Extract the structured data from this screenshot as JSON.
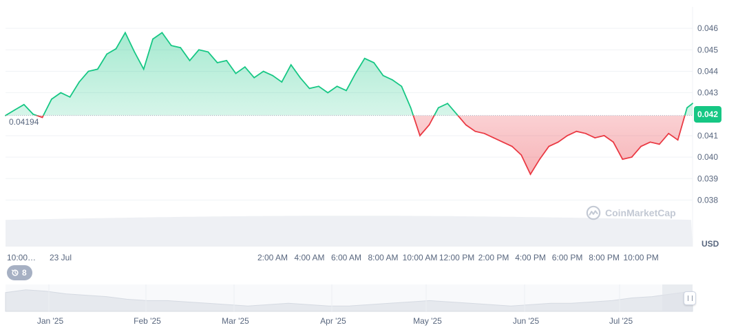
{
  "chart_data": {
    "type": "area",
    "reference_price": 0.04194,
    "reference_price_label": "0.04194",
    "current_price_label": "0.042",
    "currency": "USD",
    "ylim": [
      0.0375,
      0.047
    ],
    "y_ticks": [
      "0.046",
      "0.045",
      "0.044",
      "0.043",
      "0.041",
      "0.040",
      "0.039",
      "0.038"
    ],
    "y_tick_values": [
      0.046,
      0.045,
      0.044,
      0.043,
      0.041,
      0.04,
      0.039,
      0.038
    ],
    "x_labels": [
      "10:00…",
      "23 Jul",
      "2:00 AM",
      "4:00 AM",
      "6:00 AM",
      "8:00 AM",
      "10:00 AM",
      "12:00 PM",
      "2:00 PM",
      "4:00 PM",
      "6:00 PM",
      "8:00 PM",
      "10:00 PM"
    ],
    "x_label_hours": [
      -14,
      -10,
      2,
      4,
      6,
      8,
      10,
      12,
      14,
      16,
      18,
      20,
      22
    ],
    "x_range_hours": [
      -12.5,
      24.8
    ],
    "series": [
      {
        "x": [
          -12.5,
          -12,
          -11.5,
          -11,
          -10.5,
          -10,
          -9.5,
          -9,
          -8.5,
          -8,
          -7.5,
          -7,
          -6.5,
          -6,
          -5.5,
          -5,
          -4.5,
          -4,
          -3.5,
          -3,
          -2.5,
          -2,
          -1.5,
          -1,
          -0.5,
          0,
          0.5,
          1,
          1.5,
          2,
          2.5,
          3,
          3.5,
          4,
          4.5,
          5,
          5.5,
          6,
          6.5,
          7,
          7.5,
          8,
          8.5,
          9,
          9.5,
          10,
          10.5,
          11,
          11.5,
          12,
          12.5,
          13,
          13.5,
          14,
          14.5,
          15,
          15.5,
          16,
          16.5,
          17,
          17.5,
          18,
          18.5,
          19,
          19.5,
          20,
          20.5,
          21,
          21.5,
          22,
          22.5,
          23,
          23.5,
          24,
          24.5,
          24.8
        ],
        "y": [
          0.04194,
          0.0422,
          0.04245,
          0.042,
          0.04185,
          0.0427,
          0.043,
          0.0428,
          0.0435,
          0.044,
          0.0441,
          0.0448,
          0.04505,
          0.0458,
          0.0449,
          0.0441,
          0.0455,
          0.0458,
          0.0452,
          0.0451,
          0.0445,
          0.045,
          0.0449,
          0.0444,
          0.0445,
          0.0439,
          0.0442,
          0.0437,
          0.044,
          0.0438,
          0.0435,
          0.0443,
          0.0437,
          0.0432,
          0.0433,
          0.043,
          0.0433,
          0.0431,
          0.0439,
          0.0446,
          0.0444,
          0.0438,
          0.0436,
          0.0433,
          0.0423,
          0.041,
          0.0415,
          0.0423,
          0.0425,
          0.042,
          0.0415,
          0.0412,
          0.0411,
          0.0409,
          0.0407,
          0.0405,
          0.0401,
          0.0392,
          0.0399,
          0.0405,
          0.0407,
          0.041,
          0.0412,
          0.0411,
          0.0409,
          0.041,
          0.0407,
          0.0399,
          0.04,
          0.0405,
          0.0407,
          0.0406,
          0.0411,
          0.0408,
          0.0423,
          0.0425
        ]
      }
    ],
    "up_color": "#16c784",
    "down_color": "#ea3943",
    "navigator_labels": [
      "Jan '25",
      "Feb '25",
      "Mar '25",
      "Apr '25",
      "May '25",
      "Jun '25",
      "Jul '25"
    ],
    "navigator_values": [
      0.05,
      0.052,
      0.051,
      0.049,
      0.048,
      0.047,
      0.045,
      0.044,
      0.044,
      0.043,
      0.042,
      0.041,
      0.04,
      0.041,
      0.042,
      0.041,
      0.04,
      0.04,
      0.041,
      0.042,
      0.043,
      0.044,
      0.043,
      0.042,
      0.041,
      0.04,
      0.041,
      0.042,
      0.042,
      0.043,
      0.044,
      0.046,
      0.047,
      0.049,
      0.051
    ]
  },
  "events": {
    "count": "8",
    "icon": "history-icon"
  },
  "watermark": {
    "text": "CoinMarketCap"
  }
}
